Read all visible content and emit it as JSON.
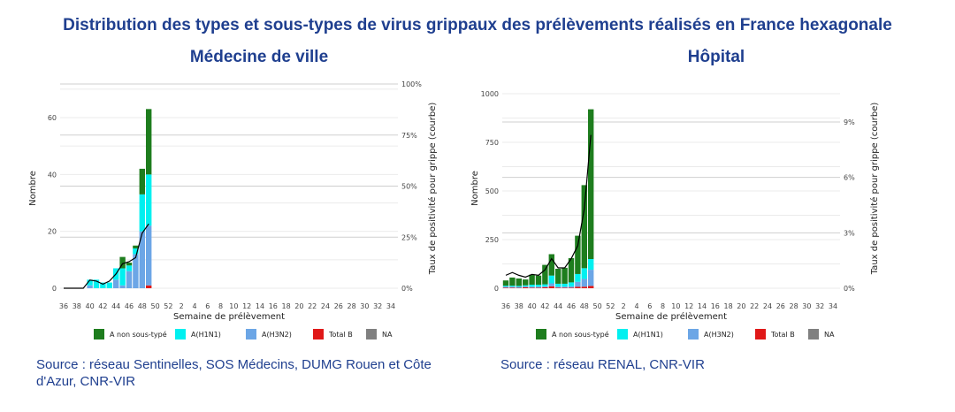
{
  "title": "Distribution des types et sous-types de virus grippaux des prélèvements réalisés en France hexagonale",
  "sources": [
    "Source : réseau Sentinelles, SOS Médecins, DUMG Rouen et Côte d'Azur, CNR-VIR",
    "Source : réseau RENAL, CNR-VIR"
  ],
  "colors": {
    "A non sous-typé": "#1e7d1e",
    "A(H1N1)": "#00f0f0",
    "A(H3N2)": "#6ca6e6",
    "Total B": "#e01818",
    "NA": "#808080"
  },
  "chart_data": [
    {
      "type": "bar",
      "title": "Médecine de ville",
      "xlabel": "Semaine de prélèvement",
      "ylabel": "Nombre",
      "y2label": "Taux de positivité pour grippe (courbe)",
      "ylim": [
        0,
        70
      ],
      "yticks": [
        0,
        20,
        40,
        60
      ],
      "y2lim": [
        0,
        100
      ],
      "y2ticks": [
        "0%",
        "25%",
        "50%",
        "75%",
        "100%"
      ],
      "xticks": [
        "36",
        "38",
        "40",
        "42",
        "44",
        "46",
        "48",
        "50",
        "52",
        "2",
        "4",
        "6",
        "8",
        "10",
        "12",
        "14",
        "16",
        "18",
        "20",
        "22",
        "24",
        "26",
        "28",
        "30",
        "32",
        "34"
      ],
      "weeks": [
        36,
        37,
        38,
        39,
        40,
        41,
        42,
        43,
        44,
        45,
        46,
        47,
        48,
        49
      ],
      "legend": [
        "A non sous-typé",
        "A(H1N1)",
        "A(H3N2)",
        "Total B",
        "NA"
      ],
      "series": [
        {
          "name": "Total B",
          "values": [
            0,
            0,
            0,
            0,
            0,
            0,
            0,
            0,
            0,
            0,
            0,
            0,
            0,
            1
          ]
        },
        {
          "name": "A(H3N2)",
          "values": [
            0,
            0,
            0,
            0,
            1,
            0,
            0,
            0,
            3,
            1,
            6,
            12,
            20,
            21
          ]
        },
        {
          "name": "A(H1N1)",
          "values": [
            0,
            0,
            0,
            0,
            2,
            3,
            2,
            2,
            4,
            6,
            2,
            2,
            13,
            18
          ]
        },
        {
          "name": "A non sous-typé",
          "values": [
            0,
            0,
            0,
            0,
            0,
            0,
            0,
            0,
            0,
            4,
            1,
            1,
            9,
            23
          ]
        },
        {
          "name": "NA",
          "values": [
            0,
            0,
            0,
            0,
            0,
            0,
            0,
            0,
            0,
            0,
            0,
            0,
            0,
            0
          ]
        }
      ],
      "line": {
        "name": "Taux de positivité",
        "values_pct": [
          0,
          0,
          0,
          0,
          4,
          3.5,
          2,
          3.5,
          7,
          12,
          13,
          15,
          27,
          31.5
        ]
      }
    },
    {
      "type": "bar",
      "title": "Hôpital",
      "xlabel": "Semaine de prélèvement",
      "ylabel": "Nombre",
      "y2label": "Taux de positivité pour grippe (courbe)",
      "ylim": [
        0,
        1000
      ],
      "yticks": [
        0,
        250,
        500,
        750,
        1000
      ],
      "y2lim": [
        0,
        10.4
      ],
      "y2ticks": [
        "0%",
        "3%",
        "6%",
        "9%"
      ],
      "xticks": [
        "36",
        "38",
        "40",
        "42",
        "44",
        "46",
        "48",
        "50",
        "52",
        "2",
        "4",
        "6",
        "8",
        "10",
        "12",
        "14",
        "16",
        "18",
        "20",
        "22",
        "24",
        "26",
        "28",
        "30",
        "32",
        "34"
      ],
      "weeks": [
        36,
        37,
        38,
        39,
        40,
        41,
        42,
        43,
        44,
        45,
        46,
        47,
        48,
        49
      ],
      "legend": [
        "A non sous-typé",
        "A(H1N1)",
        "A(H3N2)",
        "Total B",
        "NA"
      ],
      "series": [
        {
          "name": "Total B",
          "values": [
            3,
            3,
            2,
            5,
            3,
            3,
            5,
            10,
            3,
            3,
            3,
            8,
            8,
            12
          ]
        },
        {
          "name": "A(H3N2)",
          "values": [
            5,
            5,
            5,
            5,
            5,
            5,
            5,
            15,
            5,
            5,
            7,
            25,
            40,
            83
          ]
        },
        {
          "name": "A(H1N1)",
          "values": [
            5,
            5,
            5,
            5,
            10,
            10,
            10,
            40,
            15,
            15,
            20,
            40,
            55,
            55
          ]
        },
        {
          "name": "A non sous-typé",
          "values": [
            27,
            42,
            38,
            30,
            52,
            47,
            100,
            110,
            77,
            82,
            125,
            197,
            427,
            770
          ]
        },
        {
          "name": "NA",
          "values": [
            0,
            0,
            0,
            0,
            0,
            0,
            0,
            0,
            0,
            0,
            0,
            0,
            0,
            0
          ]
        }
      ],
      "line": {
        "name": "Taux de positivité",
        "values_pct": [
          0.7,
          0.85,
          0.7,
          0.6,
          0.75,
          0.7,
          1.0,
          1.6,
          1.1,
          1.1,
          1.6,
          2.3,
          4.3,
          8.3
        ]
      }
    }
  ]
}
